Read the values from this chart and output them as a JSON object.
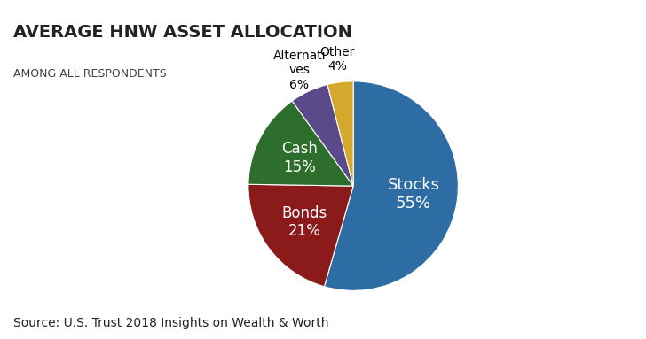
{
  "title": "AVERAGE HNW ASSET ALLOCATION",
  "subtitle": "AMONG ALL RESPONDENTS",
  "source": "Source: U.S. Trust 2018 Insights on Wealth & Worth",
  "labels": [
    "Stocks",
    "Bonds",
    "Cash",
    "Alternatives",
    "Other"
  ],
  "values": [
    55,
    21,
    15,
    6,
    4
  ],
  "colors": [
    "#2e6da4",
    "#8b1a1a",
    "#2d6e2d",
    "#5b4a8a",
    "#d4a82a"
  ],
  "inside_labels": [
    "Stocks\n55%",
    "Bonds\n21%",
    "Cash\n15%",
    "",
    ""
  ],
  "outside_labels": [
    "",
    "",
    "",
    "Alternati\nves\n6%",
    "Other\n4%"
  ],
  "inside_label_colors": [
    "white",
    "white",
    "white",
    "white",
    "black"
  ],
  "outside_label_colors": [
    "black",
    "black",
    "black",
    "black",
    "black"
  ],
  "background_color": "#ffffff",
  "title_fontsize": 14,
  "subtitle_fontsize": 9,
  "source_fontsize": 10,
  "inside_fontsizes": [
    13,
    12,
    12,
    10,
    10
  ],
  "outside_fontsizes": [
    10,
    10,
    10,
    10,
    10
  ]
}
